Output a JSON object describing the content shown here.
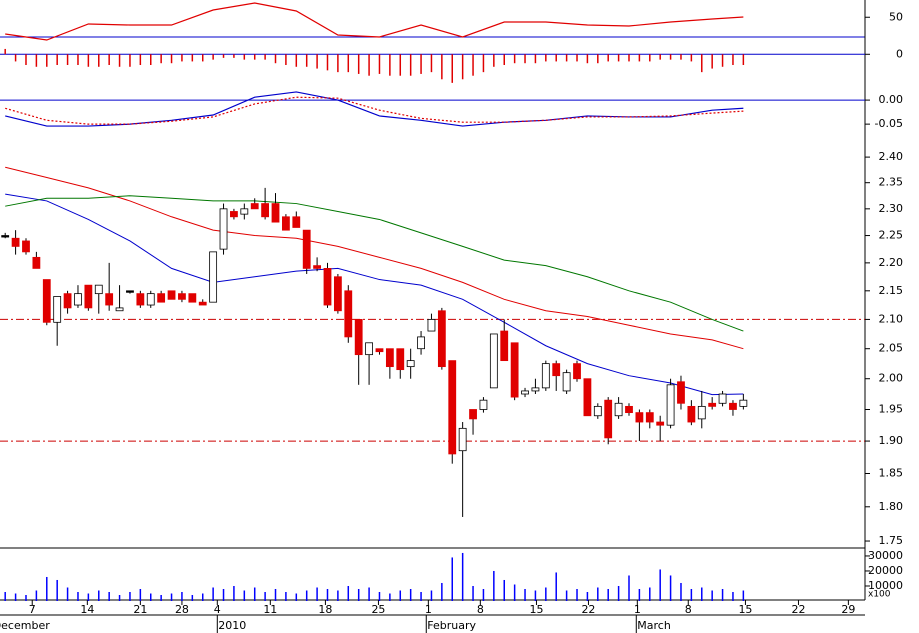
{
  "chart_data": [
    {
      "type": "line",
      "x": [
        0,
        4,
        8,
        12,
        16,
        20,
        24,
        28,
        32,
        36,
        40,
        44,
        48,
        52,
        56,
        60,
        64,
        68,
        71
      ],
      "series": [
        {
          "color": "#e00000",
          "values": [
            20.9,
            10.4,
            38.3,
            36.5,
            36.5,
            62.6,
            74.8,
            60.9,
            19.1,
            15.7,
            36.5,
            15.7,
            41.7,
            41.7,
            36.5,
            34.8,
            41.7,
            47,
            50.4
          ]
        }
      ],
      "ylim": [
        0,
        80
      ],
      "yticks": [
        50
      ]
    },
    {
      "type": "bar",
      "color": "#e00000",
      "zero_line": true,
      "values": [
        0.15,
        -0.2,
        -0.3,
        -0.35,
        -0.35,
        -0.3,
        -0.3,
        -0.3,
        -0.35,
        -0.35,
        -0.3,
        -0.35,
        -0.35,
        -0.3,
        -0.3,
        -0.25,
        -0.25,
        -0.2,
        -0.2,
        -0.2,
        -0.15,
        -0.1,
        -0.1,
        -0.15,
        -0.15,
        -0.15,
        -0.25,
        -0.3,
        -0.35,
        -0.35,
        -0.4,
        -0.45,
        -0.5,
        -0.5,
        -0.55,
        -0.6,
        -0.55,
        -0.6,
        -0.6,
        -0.6,
        -0.55,
        -0.5,
        -0.7,
        -0.8,
        -0.7,
        -0.6,
        -0.5,
        -0.35,
        -0.3,
        -0.25,
        -0.25,
        -0.25,
        -0.2,
        -0.2,
        -0.2,
        -0.2,
        -0.25,
        -0.25,
        -0.2,
        -0.2,
        -0.2,
        -0.2,
        -0.2,
        -0.15,
        -0.15,
        -0.15,
        -0.2,
        -0.5,
        -0.4,
        -0.35,
        -0.3,
        -0.3
      ],
      "ylim": [
        -1,
        0.4
      ],
      "yticks": [
        0
      ]
    },
    {
      "type": "line",
      "zero_line": true,
      "x": [
        0,
        4,
        8,
        12,
        16,
        20,
        24,
        28,
        32,
        36,
        40,
        44,
        48,
        52,
        56,
        60,
        64,
        68,
        71
      ],
      "series": [
        {
          "color": "#0000cc",
          "values": [
            -0.033,
            -0.054,
            -0.054,
            -0.05,
            -0.042,
            -0.031,
            0.006,
            0.017,
            0,
            -0.033,
            -0.042,
            -0.054,
            -0.046,
            -0.042,
            -0.033,
            -0.035,
            -0.035,
            -0.021,
            -0.017
          ]
        },
        {
          "color": "#e00000",
          "dashed": true,
          "values": [
            -0.017,
            -0.042,
            -0.05,
            -0.05,
            -0.044,
            -0.035,
            -0.008,
            0.006,
            0.004,
            -0.021,
            -0.038,
            -0.046,
            -0.046,
            -0.042,
            -0.035,
            -0.035,
            -0.033,
            -0.027,
            -0.023
          ]
        }
      ],
      "ylim": [
        -0.083,
        0.021
      ],
      "yticks": [
        {
          "value": 0,
          "label": "0.00"
        },
        {
          "value": -0.05,
          "label": "-0.05"
        }
      ]
    },
    {
      "type": "candlestick",
      "log_scale": true,
      "up_color": "#ffffff",
      "down_color": "#e00000",
      "doji_color": "#000000",
      "open": [
        2.25,
        2.245,
        2.24,
        2.21,
        2.17,
        2.095,
        2.145,
        2.125,
        2.16,
        2.145,
        2.145,
        2.115,
        2.15,
        2.145,
        2.125,
        2.145,
        2.15,
        2.145,
        2.145,
        2.13,
        2.13,
        2.225,
        2.295,
        2.29,
        2.31,
        2.31,
        2.31,
        2.285,
        2.285,
        2.26,
        2.195,
        2.19,
        2.175,
        2.15,
        2.1,
        2.04,
        2.05,
        2.05,
        2.05,
        2.02,
        2.05,
        2.08,
        2.115,
        2.03,
        1.885,
        1.95,
        1.95,
        1.985,
        2.08,
        2.06,
        1.975,
        1.98,
        1.985,
        2.025,
        1.98,
        2.025,
        2.0,
        1.94,
        1.965,
        1.94,
        1.955,
        1.945,
        1.945,
        1.93,
        1.925,
        1.995,
        1.955,
        1.935,
        1.96,
        1.96,
        1.96,
        1.955
      ],
      "high": [
        2.255,
        2.26,
        2.245,
        2.22,
        2.17,
        2.14,
        2.15,
        2.16,
        2.16,
        2.16,
        2.2,
        2.16,
        2.15,
        2.15,
        2.15,
        2.15,
        2.15,
        2.15,
        2.145,
        2.135,
        2.22,
        2.31,
        2.3,
        2.31,
        2.32,
        2.34,
        2.33,
        2.29,
        2.295,
        2.26,
        2.21,
        2.2,
        2.18,
        2.16,
        2.1,
        2.06,
        2.05,
        2.05,
        2.05,
        2.05,
        2.08,
        2.11,
        2.12,
        2.03,
        1.93,
        1.95,
        1.97,
        2.075,
        2.1,
        2.06,
        1.985,
        2.0,
        2.03,
        2.03,
        2.015,
        2.03,
        2.0,
        1.96,
        1.97,
        1.97,
        1.96,
        1.95,
        1.95,
        1.94,
        2.0,
        2.005,
        1.965,
        1.98,
        1.97,
        1.98,
        1.965,
        1.975
      ],
      "low": [
        2.245,
        2.215,
        2.215,
        2.19,
        2.09,
        2.055,
        2.11,
        2.12,
        2.115,
        2.11,
        2.115,
        2.115,
        2.145,
        2.12,
        2.12,
        2.13,
        2.135,
        2.13,
        2.13,
        2.125,
        2.13,
        2.215,
        2.28,
        2.28,
        2.3,
        2.28,
        2.275,
        2.26,
        2.265,
        2.18,
        2.185,
        2.12,
        2.11,
        2.06,
        1.99,
        1.99,
        2.04,
        2.0,
        2.0,
        2.0,
        2.04,
        2.08,
        2.015,
        1.865,
        1.785,
        1.91,
        1.945,
        1.985,
        2.03,
        1.965,
        1.97,
        1.975,
        1.98,
        1.98,
        1.975,
        1.995,
        1.94,
        1.935,
        1.895,
        1.935,
        1.94,
        1.9,
        1.92,
        1.9,
        1.92,
        1.95,
        1.925,
        1.92,
        1.95,
        1.955,
        1.94,
        1.95
      ],
      "close": [
        2.25,
        2.23,
        2.22,
        2.19,
        2.095,
        2.14,
        2.12,
        2.145,
        2.12,
        2.16,
        2.125,
        2.12,
        2.15,
        2.125,
        2.145,
        2.13,
        2.135,
        2.135,
        2.13,
        2.125,
        2.22,
        2.3,
        2.285,
        2.3,
        2.3,
        2.285,
        2.275,
        2.26,
        2.265,
        2.19,
        2.19,
        2.125,
        2.115,
        2.07,
        2.04,
        2.06,
        2.045,
        2.02,
        2.015,
        2.03,
        2.07,
        2.1,
        2.02,
        1.88,
        1.92,
        1.935,
        1.965,
        2.075,
        2.03,
        1.97,
        1.98,
        1.985,
        2.025,
        2.005,
        2.01,
        2.0,
        1.94,
        1.955,
        1.905,
        1.96,
        1.945,
        1.93,
        1.93,
        1.925,
        1.99,
        1.96,
        1.93,
        1.955,
        1.955,
        1.975,
        1.95,
        1.965
      ],
      "overlays": {
        "x": [
          0,
          4,
          8,
          12,
          16,
          20,
          24,
          28,
          32,
          36,
          40,
          44,
          48,
          52,
          56,
          60,
          64,
          68,
          71
        ],
        "series": [
          {
            "color": "#0000cc",
            "values": [
              2.328,
              2.315,
              2.28,
              2.24,
              2.19,
              2.165,
              2.175,
              2.185,
              2.19,
              2.17,
              2.16,
              2.135,
              2.095,
              2.055,
              2.025,
              2.005,
              1.993,
              1.974,
              1.975
            ]
          },
          {
            "color": "#e00000",
            "values": [
              2.38,
              2.36,
              2.34,
              2.315,
              2.285,
              2.26,
              2.25,
              2.245,
              2.23,
              2.21,
              2.19,
              2.165,
              2.135,
              2.115,
              2.105,
              2.09,
              2.075,
              2.065,
              2.05
            ]
          },
          {
            "color": "#007700",
            "values": [
              2.305,
              2.32,
              2.32,
              2.325,
              2.32,
              2.315,
              2.315,
              2.31,
              2.295,
              2.28,
              2.255,
              2.23,
              2.205,
              2.195,
              2.175,
              2.15,
              2.13,
              2.1,
              2.08
            ]
          }
        ]
      },
      "hlines": [
        2.1,
        1.9
      ],
      "hline_color": "#cc0000",
      "ylim": [
        1.74,
        2.43
      ],
      "yticks": [
        {
          "value": 2.4,
          "label": "2.40"
        },
        2.35,
        {
          "value": 2.3,
          "label": "2.30"
        },
        2.25,
        {
          "value": 2.2,
          "label": "2.20"
        },
        2.15,
        {
          "value": 2.1,
          "label": "2.10"
        },
        2.05,
        {
          "value": 2,
          "label": "2.00"
        },
        1.95,
        {
          "value": 1.9,
          "label": "1.90"
        },
        1.85,
        {
          "value": 1.8,
          "label": "1.80"
        },
        1.75
      ],
      "xlim": [
        -0.5,
        82.7
      ],
      "xticks": [
        {
          "value": 2.6,
          "label": "7"
        },
        {
          "value": 7.9,
          "label": "14"
        },
        {
          "value": 13.0,
          "label": "21"
        },
        {
          "value": 17.0,
          "label": "28"
        },
        {
          "value": 20.4,
          "label": "4"
        },
        {
          "value": 25.5,
          "label": "11"
        },
        {
          "value": 30.8,
          "label": "18"
        },
        {
          "value": 35.9,
          "label": "25"
        },
        {
          "value": 40.7,
          "label": "1"
        },
        {
          "value": 45.7,
          "label": "8"
        },
        {
          "value": 51.1,
          "label": "15"
        },
        {
          "value": 56.1,
          "label": "22"
        },
        {
          "value": 60.8,
          "label": "1"
        },
        {
          "value": 65.7,
          "label": "8"
        },
        {
          "value": 71.2,
          "label": "15"
        },
        {
          "value": 76.3,
          "label": "22"
        },
        {
          "value": 81.1,
          "label": "29"
        }
      ],
      "month_labels": [
        {
          "value": -1.3,
          "label": "December"
        },
        {
          "value": 20.4,
          "label": "2010"
        },
        {
          "value": 40.5,
          "label": "February"
        },
        {
          "value": 60.7,
          "label": "March"
        }
      ]
    },
    {
      "type": "bar",
      "color": "#0000ff",
      "unit_label": "x100",
      "values": [
        6000,
        5000,
        4000,
        7000,
        16000,
        14000,
        9000,
        6000,
        5000,
        7000,
        6000,
        4000,
        6000,
        8000,
        5000,
        4000,
        5000,
        6000,
        4000,
        5000,
        9000,
        8000,
        10000,
        7000,
        9000,
        6000,
        8000,
        6000,
        5000,
        7000,
        9000,
        8000,
        7000,
        10000,
        8000,
        9000,
        6000,
        5000,
        7000,
        8000,
        6000,
        7000,
        12000,
        29000,
        32000,
        10000,
        8000,
        20000,
        14000,
        11000,
        8000,
        7000,
        9000,
        19000,
        7000,
        8000,
        6000,
        9000,
        8000,
        10000,
        17000,
        8000,
        9000,
        21000,
        17000,
        12000,
        8000,
        9000,
        7000,
        8000,
        6000,
        7000
      ],
      "ylim": [
        0,
        35300
      ],
      "yticks": [
        30000,
        20000,
        10000
      ]
    }
  ]
}
